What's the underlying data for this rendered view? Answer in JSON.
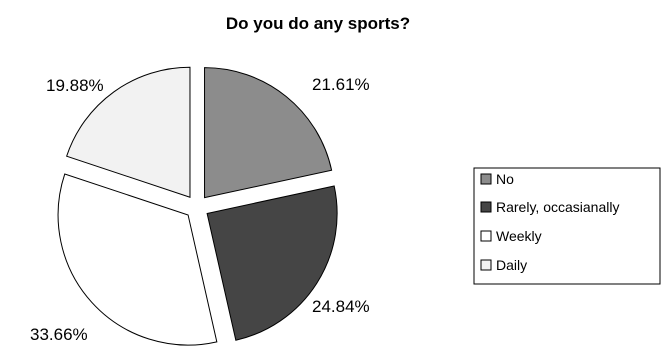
{
  "chart_data": {
    "type": "pie",
    "title": "Do you do any sports?",
    "categories": [
      "No",
      "Rarely, occasianally",
      "Weekly",
      "Daily"
    ],
    "values": [
      21.61,
      24.84,
      33.66,
      19.88
    ],
    "value_labels": [
      "21.61%",
      "24.84%",
      "33.66%",
      "19.88%"
    ],
    "colors": [
      "#8c8c8c",
      "#454545",
      "#ffffff",
      "#f2f2f2"
    ],
    "exploded": true,
    "legend": "right"
  }
}
